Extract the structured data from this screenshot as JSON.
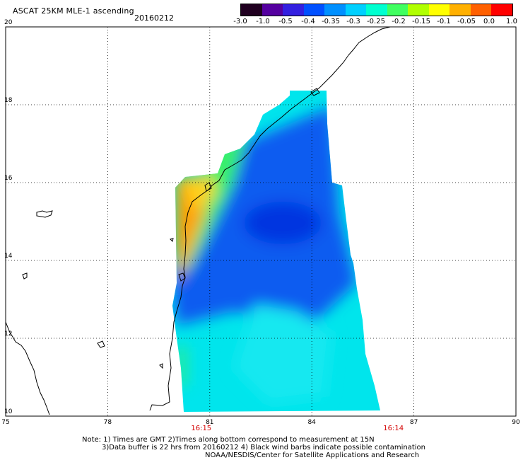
{
  "header": {
    "title": "ASCAT 25KM MLE-1 ascending",
    "date": "20160212"
  },
  "colorbar": {
    "labels": [
      "-3.0",
      "-1.0",
      "-0.5",
      "-0.4",
      "-0.35",
      "-0.3",
      "-0.25",
      "-0.2",
      "-0.15",
      "-0.1",
      "-0.05",
      "0.0",
      "1.0"
    ],
    "colors": [
      "#200020",
      "#5500a0",
      "#3320e0",
      "#0050ff",
      "#0090ff",
      "#00d0ff",
      "#00ffd0",
      "#40ff60",
      "#b0ff00",
      "#ffff00",
      "#ffb000",
      "#ff6000",
      "#ff0000"
    ]
  },
  "map": {
    "lat_labels": [
      "20",
      "18",
      "16",
      "14",
      "12",
      "10"
    ],
    "lon_labels": [
      "75",
      "78",
      "81",
      "84",
      "87",
      "90"
    ],
    "lat_values": [
      20,
      18,
      16,
      14,
      12,
      10
    ],
    "lon_values": [
      75,
      78,
      81,
      84,
      87,
      90
    ],
    "lat_range": [
      10,
      20
    ],
    "lon_range": [
      75,
      90
    ],
    "grid": "dotted",
    "colors": {
      "swath_main": "#00e5ec",
      "swath_blue": "#0a5cf0",
      "swath_deep": "#0235e0",
      "swath_green": "#38f06a",
      "swath_orange": "#ffa000",
      "swath_yellow": "#ffd21c",
      "coastline": "#000000"
    },
    "pass_times": [
      {
        "label": "16:15",
        "lon": 80.75
      },
      {
        "label": "16:14",
        "lon": 86.4
      }
    ]
  },
  "notes": {
    "line1": "Note: 1) Times are GMT 2)Times along bottom correspond to measurement at 15N",
    "line2": "3)Data buffer is 22 hrs from 20160212 4) Black wind barbs indicate possible contamination",
    "line3": "NOAA/NESDIS/Center for Satellite Applications and Research"
  }
}
